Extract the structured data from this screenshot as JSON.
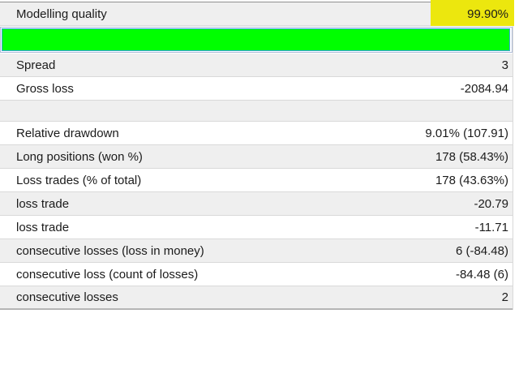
{
  "colors": {
    "row_gray": "#efefef",
    "row_white": "#ffffff",
    "divider": "#d9d9d9",
    "top_border": "#8f8f8f",
    "bottom_border": "#b5b5b5",
    "text": "#1b1b1b",
    "highlight_yellow": "#ece70e",
    "bar_fill_green": "#00ff00",
    "bar_inner_border": "#38a3e0",
    "bar_outer_border": "#aebcd8"
  },
  "table": {
    "rows": [
      {
        "type": "data",
        "label": "Modelling quality",
        "value": "99.90%",
        "shade": "gray",
        "value_highlight": true
      },
      {
        "type": "bar",
        "name": "modelling-quality-bar",
        "percent": 99.9
      },
      {
        "type": "data",
        "label": "Spread",
        "value": "3",
        "shade": "gray"
      },
      {
        "type": "data",
        "label": "Gross loss",
        "value": "-2084.94",
        "shade": "white"
      },
      {
        "type": "empty",
        "shade": "gray"
      },
      {
        "type": "data",
        "label": "Relative drawdown",
        "value": "9.01% (107.91)",
        "shade": "white"
      },
      {
        "type": "data",
        "label": "Long positions (won %)",
        "value": "178 (58.43%)",
        "shade": "gray"
      },
      {
        "type": "data",
        "label": "Loss trades (% of total)",
        "value": "178 (43.63%)",
        "shade": "white"
      },
      {
        "type": "data",
        "label": "loss trade",
        "value": "-20.79",
        "shade": "gray"
      },
      {
        "type": "data",
        "label": "loss trade",
        "value": "-11.71",
        "shade": "white"
      },
      {
        "type": "data",
        "label": "consecutive losses (loss in money)",
        "value": "6 (-84.48)",
        "shade": "gray"
      },
      {
        "type": "data",
        "label": "consecutive loss (count of losses)",
        "value": "-84.48 (6)",
        "shade": "white"
      },
      {
        "type": "data",
        "label": "consecutive losses",
        "value": "2",
        "shade": "gray"
      }
    ]
  }
}
